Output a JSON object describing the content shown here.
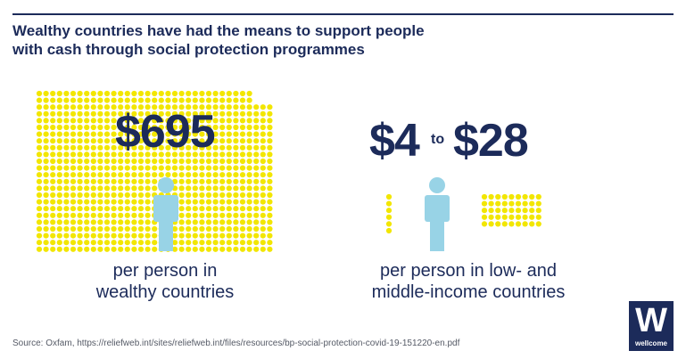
{
  "headline": {
    "line1": "Wealthy countries have had the means to support people",
    "line2": "with cash through social protection programmes"
  },
  "wealthy": {
    "amount": "$695",
    "caption_line1": "per person in",
    "caption_line2": "wealthy countries"
  },
  "low_middle": {
    "amount_low": "$4",
    "range_separator": "to",
    "amount_high": "$28",
    "caption_line1": "per person in low- and",
    "caption_line2": "middle-income countries"
  },
  "source": "Source: Oxfam, https://reliefweb.int/sites/reliefweb.int/files/resources/bp-social-protection-covid-19-151220-en.pdf",
  "logo": {
    "mark": "W",
    "wordmark": "wellcome"
  },
  "colors": {
    "navy": "#1c2b5a",
    "dot_yellow": "#f2e600",
    "person_blue": "#98d3e6",
    "rule": "#1c2b5a"
  },
  "icons": {
    "person": "person-icon",
    "dot": "coin-dot"
  }
}
